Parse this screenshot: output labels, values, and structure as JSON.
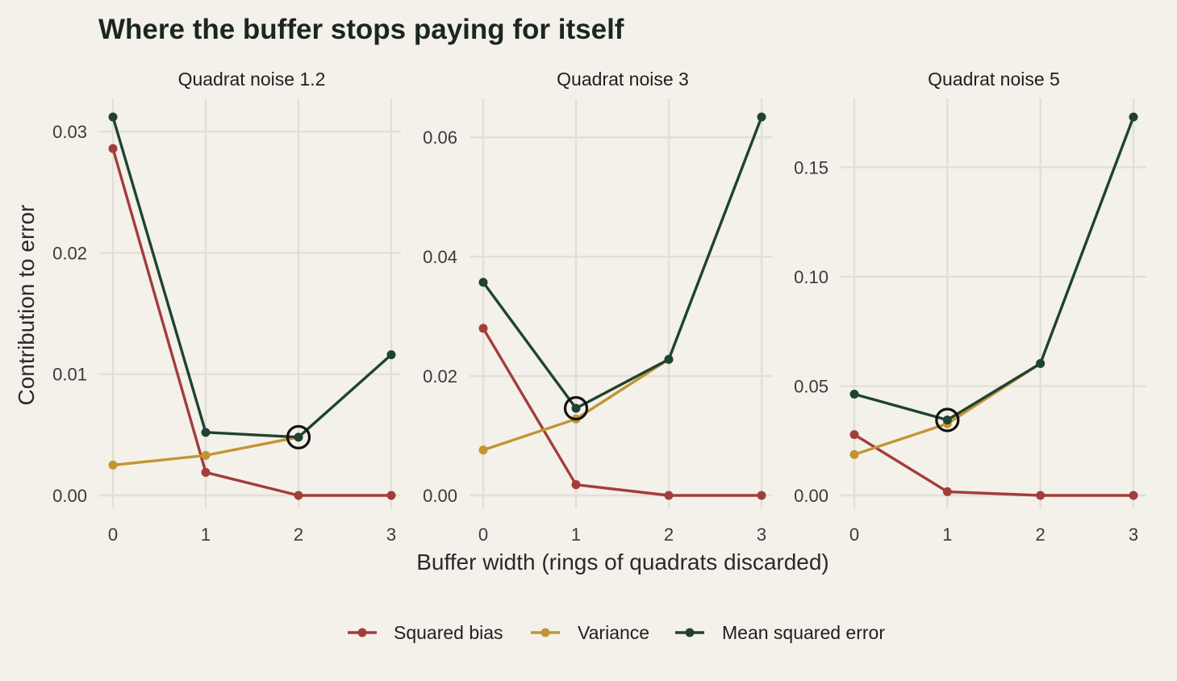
{
  "chart_data": {
    "type": "line",
    "title": "Where the buffer stops paying for itself",
    "xlabel": "Buffer width (rings of quadrats discarded)",
    "ylabel": "Contribution to error",
    "x": [
      0,
      1,
      2,
      3
    ],
    "legend_position": "bottom",
    "grid": true,
    "colors": {
      "Squared bias": "#a33d3c",
      "Variance": "#c39432",
      "Mean squared error": "#1f4330"
    },
    "legend": [
      "Squared bias",
      "Variance",
      "Mean squared error"
    ],
    "panels": [
      {
        "label": "Quadrat noise 1.2",
        "ylim": [
          0,
          0.0312
        ],
        "yticks": [
          0,
          0.01,
          0.02,
          0.03
        ],
        "ytick_labels": [
          "0.00",
          "0.01",
          "0.02",
          "0.03"
        ],
        "series": [
          {
            "name": "Squared bias",
            "values": [
              0.0286,
              0.0019,
              0.0,
              0.0
            ]
          },
          {
            "name": "Variance",
            "values": [
              0.0025,
              0.0033,
              0.0048,
              null
            ]
          },
          {
            "name": "Mean squared error",
            "values": [
              0.0312,
              0.0052,
              0.0048,
              0.0116
            ]
          }
        ],
        "optimum_x": 2
      },
      {
        "label": "Quadrat noise 3",
        "ylim": [
          0,
          0.0634
        ],
        "yticks": [
          0,
          0.02,
          0.04,
          0.06
        ],
        "ytick_labels": [
          "0.00",
          "0.02",
          "0.04",
          "0.06"
        ],
        "series": [
          {
            "name": "Squared bias",
            "values": [
              0.028,
              0.0018,
              0.0,
              0.0
            ]
          },
          {
            "name": "Variance",
            "values": [
              0.0076,
              0.0128,
              0.0228,
              null
            ]
          },
          {
            "name": "Mean squared error",
            "values": [
              0.0357,
              0.0146,
              0.0228,
              0.0634
            ]
          }
        ],
        "optimum_x": 1
      },
      {
        "label": "Quadrat noise 5",
        "ylim": [
          0,
          0.173
        ],
        "yticks": [
          0,
          0.05,
          0.1,
          0.15
        ],
        "ytick_labels": [
          "0.00",
          "0.05",
          "0.10",
          "0.15"
        ],
        "series": [
          {
            "name": "Squared bias",
            "values": [
              0.0278,
              0.0017,
              0.0,
              0.0
            ]
          },
          {
            "name": "Variance",
            "values": [
              0.0187,
              0.0328,
              0.0603,
              null
            ]
          },
          {
            "name": "Mean squared error",
            "values": [
              0.0463,
              0.0345,
              0.0603,
              0.173
            ]
          }
        ],
        "optimum_x": 1
      }
    ]
  }
}
